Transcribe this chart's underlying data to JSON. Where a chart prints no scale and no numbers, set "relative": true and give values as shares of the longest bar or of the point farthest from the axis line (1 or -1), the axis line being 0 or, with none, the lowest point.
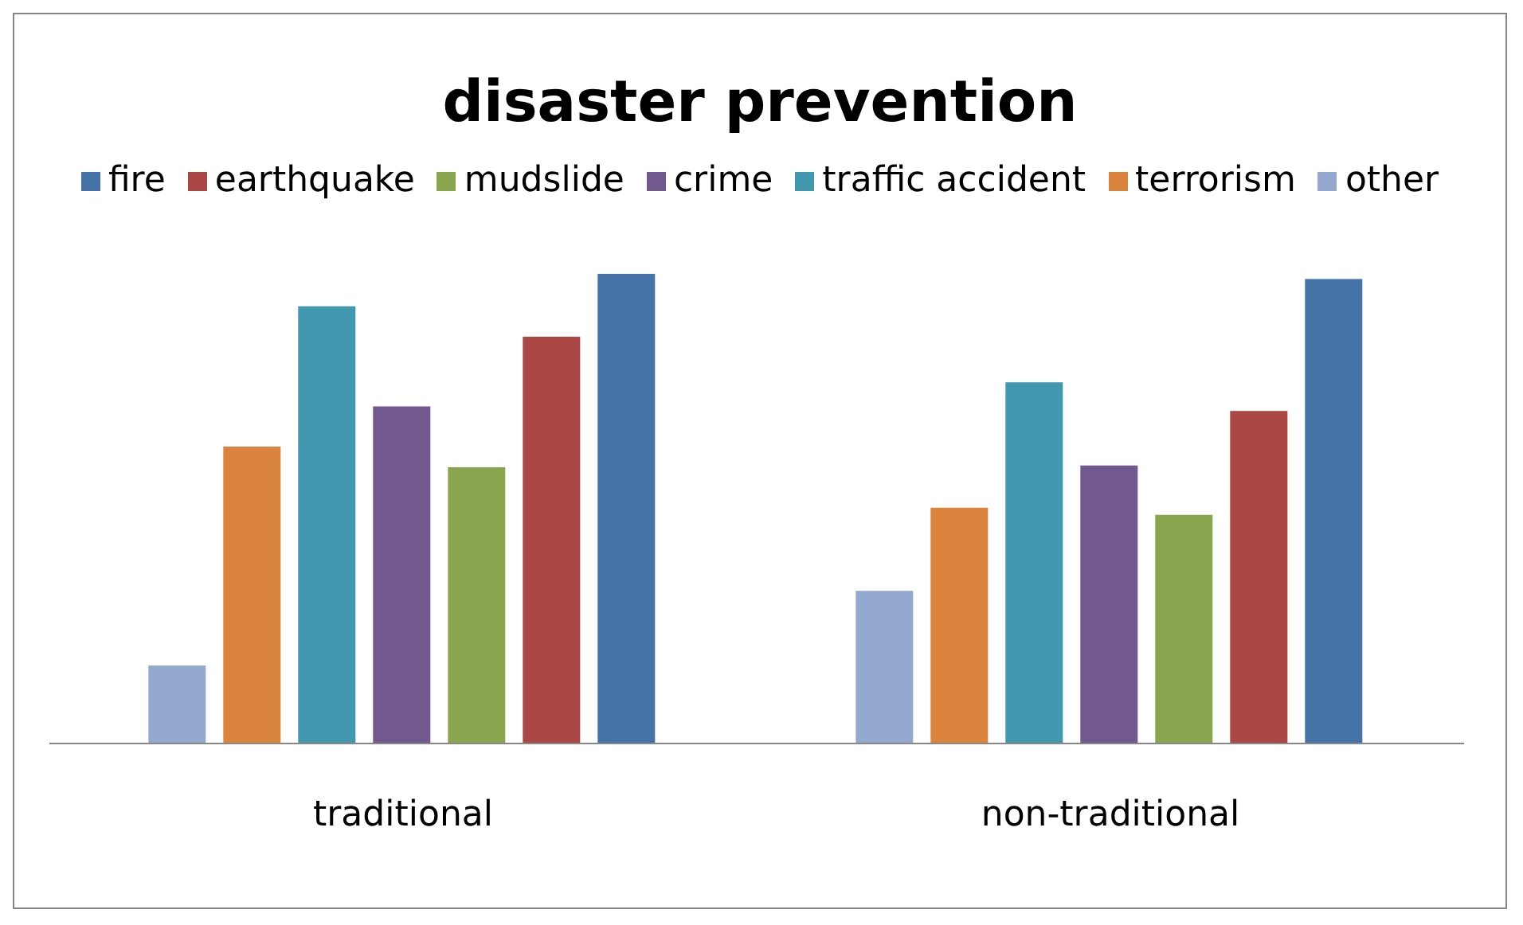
{
  "chart_data": {
    "type": "bar",
    "title": "disaster prevention",
    "relative": true,
    "legend": "top",
    "categories": [
      "traditional",
      "non-traditional"
    ],
    "series": [
      {
        "name": "fire",
        "color": "#4572a7",
        "values": [
          1,
          0.989
        ]
      },
      {
        "name": "earthquake",
        "color": "#aa4643",
        "values": [
          0.866,
          0.708
        ]
      },
      {
        "name": "mudslide",
        "color": "#89a54e",
        "values": [
          0.588,
          0.487
        ]
      },
      {
        "name": "crime",
        "color": "#71588f",
        "values": [
          0.718,
          0.592
        ]
      },
      {
        "name": "traffic accident",
        "color": "#4198af",
        "values": [
          0.931,
          0.769
        ]
      },
      {
        "name": "terrorism",
        "color": "#db843d",
        "values": [
          0.632,
          0.502
        ]
      },
      {
        "name": "other",
        "color": "#93a9cf",
        "values": [
          0.166,
          0.325
        ]
      }
    ]
  }
}
